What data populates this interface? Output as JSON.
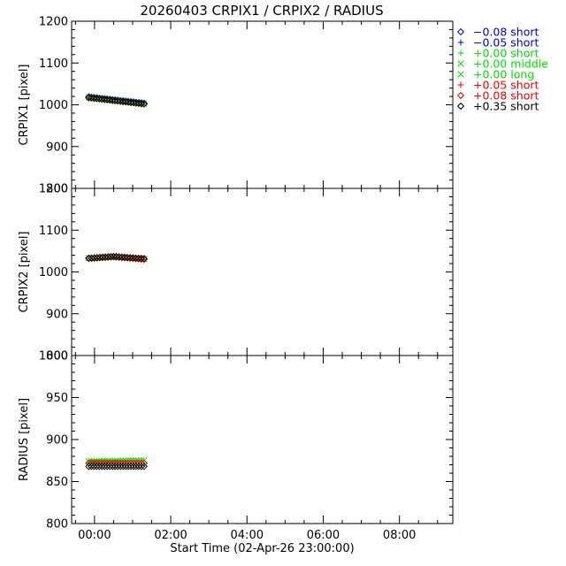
{
  "title": "20260403 CRPIX1 / CRPIX2 / RADIUS",
  "colors": {
    "black": "#000000",
    "blue": "#0000cc",
    "green": "#00dd00",
    "red": "#ee0000"
  },
  "legend": [
    {
      "symbol": "diamond",
      "color": "#0000cc",
      "label": "−0.08 short"
    },
    {
      "symbol": "plus",
      "color": "#0000cc",
      "label": "−0.05 short"
    },
    {
      "symbol": "plus",
      "color": "#00dd00",
      "label": "+0.00 short"
    },
    {
      "symbol": "cross",
      "color": "#00dd00",
      "label": "+0.00 middle"
    },
    {
      "symbol": "cross",
      "color": "#00dd00",
      "label": "+0.00 long"
    },
    {
      "symbol": "plus",
      "color": "#ee0000",
      "label": "+0.05 short"
    },
    {
      "symbol": "diamond",
      "color": "#ee0000",
      "label": "+0.08 short"
    },
    {
      "symbol": "diamond",
      "color": "#000000",
      "label": "+0.35 short"
    }
  ],
  "chart_data": [
    {
      "type": "scatter",
      "ylabel": "CRPIX1 [pixel]",
      "ylim": [
        800,
        1200
      ],
      "yticks": [
        800,
        900,
        1000,
        1100,
        1200
      ],
      "yticklabels": [
        "800",
        "900",
        "1000",
        "1100",
        "1200"
      ],
      "xlim": [
        -0.6,
        9.4
      ],
      "xticks": [
        0,
        2,
        4,
        6,
        8
      ],
      "series": [
        {
          "color": "#0000cc",
          "symbol": "diamond",
          "x": [
            -0.15,
            1.3
          ],
          "y": [
            1019,
            1004
          ]
        },
        {
          "color": "#00dd00",
          "symbol": "cross",
          "x": [
            -0.15,
            1.3
          ],
          "y": [
            1018,
            1003
          ]
        },
        {
          "color": "#ee0000",
          "symbol": "diamond",
          "x": [
            -0.15,
            1.3
          ],
          "y": [
            1017,
            1002
          ]
        },
        {
          "color": "#000000",
          "symbol": "diamond",
          "x": [
            -0.15,
            1.3
          ],
          "y": [
            1017,
            1002
          ]
        }
      ]
    },
    {
      "type": "scatter",
      "ylabel": "CRPIX2 [pixel]",
      "ylim": [
        800,
        1200
      ],
      "yticks": [
        800,
        900,
        1000,
        1100,
        1200
      ],
      "yticklabels": [
        "800",
        "900",
        "1000",
        "1100",
        "1200"
      ],
      "xlim": [
        -0.6,
        9.4
      ],
      "xticks": [
        0,
        2,
        4,
        6,
        8
      ],
      "series": [
        {
          "color": "#00dd00",
          "symbol": "cross",
          "x": [
            -0.15,
            0.5,
            1.3
          ],
          "y": [
            1033,
            1038,
            1031
          ]
        },
        {
          "color": "#ee0000",
          "symbol": "diamond",
          "x": [
            -0.15,
            0.5,
            1.3
          ],
          "y": [
            1032,
            1036,
            1030
          ]
        },
        {
          "color": "#000000",
          "symbol": "diamond",
          "x": [
            -0.15,
            0.5,
            1.3
          ],
          "y": [
            1033,
            1037,
            1032
          ]
        }
      ]
    },
    {
      "type": "scatter",
      "ylabel": "RADIUS [pixel]",
      "ylim": [
        800,
        1000
      ],
      "yticks": [
        800,
        850,
        900,
        950,
        1000
      ],
      "yticklabels": [
        "800",
        "850",
        "900",
        "950",
        "1000"
      ],
      "xlim": [
        -0.6,
        9.4
      ],
      "xticks": [
        0,
        2,
        4,
        6,
        8
      ],
      "xticklabels": [
        "00:00",
        "02:00",
        "04:00",
        "06:00",
        "08:00"
      ],
      "xlabel": "Start Time (02-Apr-26 23:00:00)",
      "series": [
        {
          "color": "#00dd00",
          "symbol": "cross",
          "x": [
            -0.15,
            1.3
          ],
          "y": [
            874,
            875
          ]
        },
        {
          "color": "#ee0000",
          "symbol": "diamond",
          "x": [
            -0.15,
            1.3
          ],
          "y": [
            872,
            872
          ]
        },
        {
          "color": "#000000",
          "symbol": "diamond",
          "x": [
            -0.15,
            1.3
          ],
          "y": [
            868,
            868
          ]
        }
      ]
    }
  ]
}
